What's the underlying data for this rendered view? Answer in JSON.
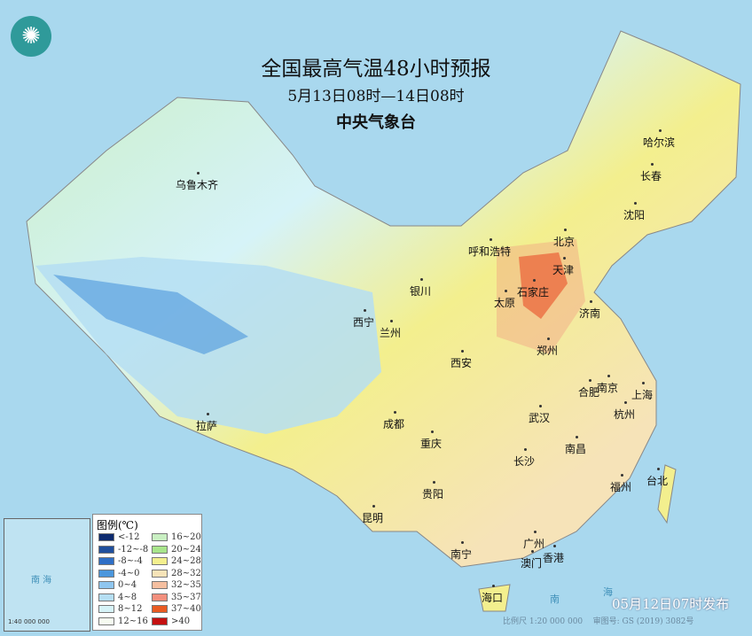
{
  "header": {
    "title": "全国最高气温48小时预报",
    "period": "5月13日08时—14日08时",
    "issuer": "中央气象台"
  },
  "logo_icon": "cma-logo",
  "cities": [
    "乌鲁木齐",
    "哈尔滨",
    "长春",
    "沈阳",
    "呼和浩特",
    "北京",
    "天津",
    "银川",
    "石家庄",
    "太原",
    "济南",
    "西宁",
    "兰州",
    "郑州",
    "西安",
    "合肥",
    "南京",
    "上海",
    "成都",
    "武汉",
    "杭州",
    "拉萨",
    "重庆",
    "长沙",
    "南昌",
    "福州",
    "台北",
    "贵阳",
    "昆明",
    "广州",
    "南宁",
    "澳门",
    "香港",
    "海口"
  ],
  "seas": [
    "南",
    "海"
  ],
  "legend": {
    "title": "图例(℃)",
    "items": [
      {
        "label": "<-12",
        "color": "#0d2a6e"
      },
      {
        "label": "-12~-8",
        "color": "#1f4f9c"
      },
      {
        "label": "-8~-4",
        "color": "#2f6fc6"
      },
      {
        "label": "-4~0",
        "color": "#4b96dc"
      },
      {
        "label": "0~4",
        "color": "#8fc6ef"
      },
      {
        "label": "4~8",
        "color": "#b5def2"
      },
      {
        "label": "8~12",
        "color": "#d6f3f8"
      },
      {
        "label": "12~16",
        "color": "#f6fbf0"
      },
      {
        "label": "16~20",
        "color": "#c9efc2"
      },
      {
        "label": "20~24",
        "color": "#a8e58b"
      },
      {
        "label": "24~28",
        "color": "#f3ef8e"
      },
      {
        "label": "28~32",
        "color": "#f6e3b8"
      },
      {
        "label": "32~35",
        "color": "#f5bfa0"
      },
      {
        "label": "35~37",
        "color": "#f28f7d"
      },
      {
        "label": "37~40",
        "color": "#e95b22"
      },
      {
        "label": ">40",
        "color": "#c41010"
      }
    ]
  },
  "footer": {
    "issued": "05月12日07时发布",
    "scale": "比例尺 1:20 000 000",
    "review": "审图号: GS (2019) 3082号"
  },
  "inset": {
    "label": "南 海",
    "scale": "1:40 000 000"
  }
}
